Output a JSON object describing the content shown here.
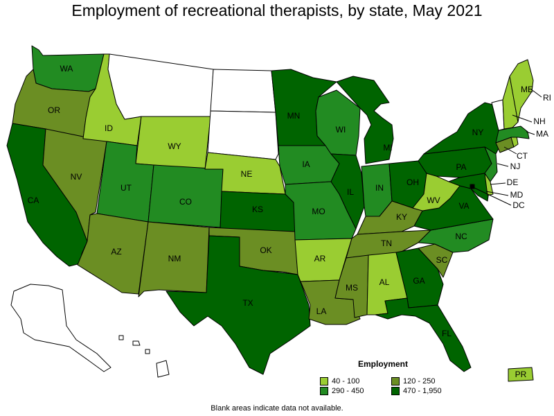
{
  "title": "Employment of recreational therapists, by state, May 2021",
  "legend": {
    "title": "Employment",
    "ranges": [
      {
        "label": "40 - 100",
        "color": "#9acd32"
      },
      {
        "label": "120 - 250",
        "color": "#6b8e23"
      },
      {
        "label": "290 - 450",
        "color": "#228b22"
      },
      {
        "label": "470 - 1,950",
        "color": "#006400"
      }
    ]
  },
  "footnote": "Blank areas indicate data not available.",
  "no_data_color": "#ffffff",
  "states": {
    "WA": {
      "label": "WA",
      "range": 2
    },
    "OR": {
      "label": "OR",
      "range": 1
    },
    "CA": {
      "label": "CA",
      "range": 3
    },
    "NV": {
      "label": "NV",
      "range": 1
    },
    "ID": {
      "label": "ID",
      "range": 0
    },
    "MT": {
      "label": "",
      "range": null
    },
    "WY": {
      "label": "WY",
      "range": 0
    },
    "UT": {
      "label": "UT",
      "range": 2
    },
    "AZ": {
      "label": "AZ",
      "range": 1
    },
    "CO": {
      "label": "CO",
      "range": 2
    },
    "NM": {
      "label": "NM",
      "range": 1
    },
    "ND": {
      "label": "",
      "range": null
    },
    "SD": {
      "label": "",
      "range": null
    },
    "NE": {
      "label": "NE",
      "range": 0
    },
    "KS": {
      "label": "KS",
      "range": 3
    },
    "OK": {
      "label": "OK",
      "range": 1
    },
    "TX": {
      "label": "TX",
      "range": 3
    },
    "MN": {
      "label": "MN",
      "range": 3
    },
    "IA": {
      "label": "IA",
      "range": 2
    },
    "MO": {
      "label": "MO",
      "range": 2
    },
    "AR": {
      "label": "AR",
      "range": 0
    },
    "LA": {
      "label": "LA",
      "range": 1
    },
    "WI": {
      "label": "WI",
      "range": 2
    },
    "IL": {
      "label": "IL",
      "range": 3
    },
    "MI": {
      "label": "MI",
      "range": 3
    },
    "IN": {
      "label": "IN",
      "range": 2
    },
    "OH": {
      "label": "OH",
      "range": 3
    },
    "KY": {
      "label": "KY",
      "range": 1
    },
    "TN": {
      "label": "TN",
      "range": 1
    },
    "MS": {
      "label": "MS",
      "range": 1
    },
    "AL": {
      "label": "AL",
      "range": 0
    },
    "GA": {
      "label": "GA",
      "range": 3
    },
    "FL": {
      "label": "FL",
      "range": 3
    },
    "SC": {
      "label": "SC",
      "range": 1
    },
    "NC": {
      "label": "NC",
      "range": 2
    },
    "VA": {
      "label": "VA",
      "range": 3
    },
    "WV": {
      "label": "WV",
      "range": 0
    },
    "PA": {
      "label": "PA",
      "range": 3
    },
    "NY": {
      "label": "NY",
      "range": 3
    },
    "VT": {
      "label": "",
      "range": null
    },
    "NH": {
      "label": "NH",
      "range": 0
    },
    "ME": {
      "label": "ME",
      "range": 0
    },
    "MA": {
      "label": "MA",
      "range": 2
    },
    "RI": {
      "label": "RI",
      "range": 0
    },
    "CT": {
      "label": "CT",
      "range": 1
    },
    "NJ": {
      "label": "NJ",
      "range": 2
    },
    "DE": {
      "label": "DE",
      "range": 0
    },
    "MD": {
      "label": "MD",
      "range": 3
    },
    "DC": {
      "label": "DC",
      "range": 3
    },
    "AK": {
      "label": "",
      "range": null
    },
    "HI": {
      "label": "",
      "range": null
    },
    "PR": {
      "label": "PR",
      "range": 0
    }
  }
}
